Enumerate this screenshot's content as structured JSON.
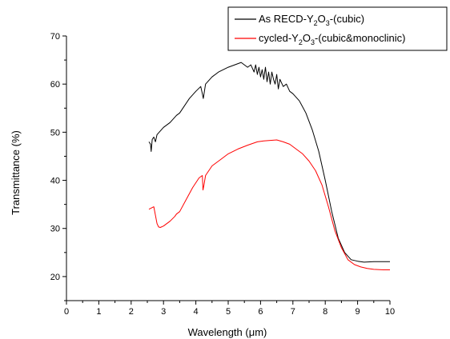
{
  "chart_data": {
    "type": "line",
    "xlabel": "Wavelength (μm)",
    "ylabel": "Transmittance (%)",
    "xlim": [
      0,
      10
    ],
    "ylim": [
      15,
      70
    ],
    "xticks": [
      0,
      1,
      2,
      3,
      4,
      5,
      6,
      7,
      8,
      9,
      10
    ],
    "yticks": [
      20,
      30,
      40,
      50,
      60,
      70
    ],
    "grid": false,
    "legend_position": "top-right",
    "legend_labels_rich": [
      [
        [
          "As RECD-Y",
          ""
        ],
        [
          "2",
          "sub"
        ],
        [
          "O",
          ""
        ],
        [
          "3",
          "sub"
        ],
        [
          "-(cubic)",
          ""
        ]
      ],
      [
        [
          "cycled-Y",
          ""
        ],
        [
          "2",
          "sub"
        ],
        [
          "O",
          ""
        ],
        [
          "3",
          "sub"
        ],
        [
          "-(cubic&monoclinic)",
          ""
        ]
      ]
    ],
    "series": [
      {
        "name": "As RECD-Y2O3-(cubic)",
        "color": "#000000",
        "x": [
          2.55,
          2.6,
          2.62,
          2.65,
          2.7,
          2.75,
          2.8,
          3.0,
          3.2,
          3.4,
          3.5,
          3.6,
          3.8,
          4.0,
          4.15,
          4.2,
          4.23,
          4.3,
          4.5,
          4.7,
          5.0,
          5.2,
          5.4,
          5.5,
          5.6,
          5.7,
          5.8,
          5.85,
          5.9,
          5.95,
          6.0,
          6.05,
          6.1,
          6.15,
          6.2,
          6.25,
          6.3,
          6.35,
          6.4,
          6.45,
          6.5,
          6.55,
          6.6,
          6.7,
          6.8,
          6.9,
          7.0,
          7.2,
          7.4,
          7.6,
          7.8,
          8.0,
          8.2,
          8.4,
          8.6,
          8.8,
          9.0,
          9.2,
          9.5,
          9.8,
          10.0
        ],
        "y": [
          48.0,
          47.5,
          46.0,
          48.5,
          49.0,
          48.0,
          49.5,
          51.0,
          52.0,
          53.5,
          54.0,
          55.0,
          57.0,
          58.5,
          59.5,
          58.0,
          57.0,
          60.0,
          61.5,
          62.5,
          63.5,
          64.0,
          64.5,
          64.0,
          63.5,
          64.0,
          62.5,
          64.0,
          62.0,
          63.5,
          61.5,
          63.0,
          61.0,
          63.5,
          60.5,
          62.5,
          60.0,
          62.5,
          61.0,
          60.0,
          62.0,
          59.0,
          61.0,
          59.5,
          60.0,
          58.5,
          58.0,
          56.5,
          54.0,
          50.5,
          46.0,
          40.0,
          33.5,
          28.0,
          25.0,
          23.5,
          23.2,
          23.0,
          23.1,
          23.1,
          23.1
        ]
      },
      {
        "name": "cycled-Y2O3-(cubic&monoclinic)",
        "color": "#ff0000",
        "x": [
          2.55,
          2.7,
          2.8,
          2.85,
          2.9,
          3.0,
          3.2,
          3.35,
          3.4,
          3.5,
          3.7,
          3.9,
          4.1,
          4.2,
          4.22,
          4.25,
          4.3,
          4.5,
          4.8,
          5.0,
          5.3,
          5.6,
          5.9,
          6.1,
          6.3,
          6.5,
          6.7,
          6.9,
          7.1,
          7.3,
          7.5,
          7.7,
          7.9,
          8.1,
          8.3,
          8.5,
          8.7,
          8.9,
          9.1,
          9.3,
          9.5,
          9.8,
          10.0
        ],
        "y": [
          34.0,
          34.5,
          31.0,
          30.3,
          30.2,
          30.5,
          31.5,
          32.5,
          33.0,
          33.5,
          36.0,
          38.5,
          40.5,
          41.0,
          38.0,
          39.0,
          41.0,
          43.0,
          44.5,
          45.5,
          46.5,
          47.3,
          48.0,
          48.2,
          48.3,
          48.4,
          48.0,
          47.5,
          46.5,
          45.5,
          44.0,
          42.0,
          39.0,
          34.5,
          29.5,
          26.0,
          23.5,
          22.5,
          22.0,
          21.7,
          21.5,
          21.4,
          21.4
        ]
      }
    ]
  }
}
